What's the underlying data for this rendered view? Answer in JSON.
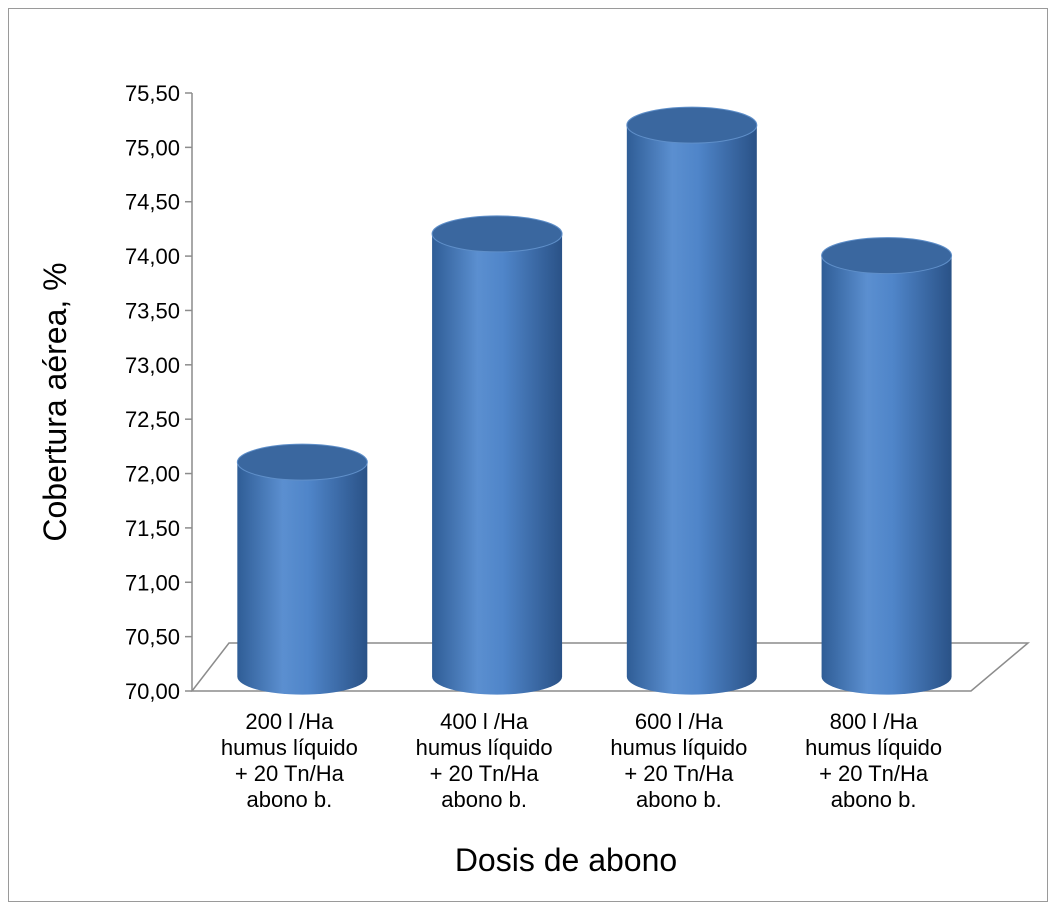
{
  "chart_data": {
    "type": "bar",
    "style": "3d-cylinder",
    "title": "",
    "xlabel": "Dosis de abono",
    "ylabel": "Cobertura aérea, %",
    "categories": [
      [
        "200 l /Ha",
        "humus líquido",
        "+ 20 Tn/Ha",
        "abono b."
      ],
      [
        "400 l /Ha",
        "humus líquido",
        "+ 20 Tn/Ha",
        "abono b."
      ],
      [
        "600 l /Ha",
        "humus líquido",
        "+ 20 Tn/Ha",
        "abono b."
      ],
      [
        "800 l /Ha",
        "humus líquido",
        "+ 20 Tn/Ha",
        "abono b."
      ]
    ],
    "values": [
      71.95,
      74.05,
      75.05,
      73.85
    ],
    "ylim": [
      70,
      75.5
    ],
    "yticks": [
      "70,00",
      "70,50",
      "71,00",
      "71,50",
      "72,00",
      "72,50",
      "73,00",
      "73,50",
      "74,00",
      "74,50",
      "75,00",
      "75,50"
    ],
    "grid": false,
    "legend": "none",
    "colors": {
      "bar": "#4f81bd",
      "bar_dark": "#2e5a92",
      "bar_top": "#3a679f",
      "axis": "#8c8c8c"
    }
  }
}
